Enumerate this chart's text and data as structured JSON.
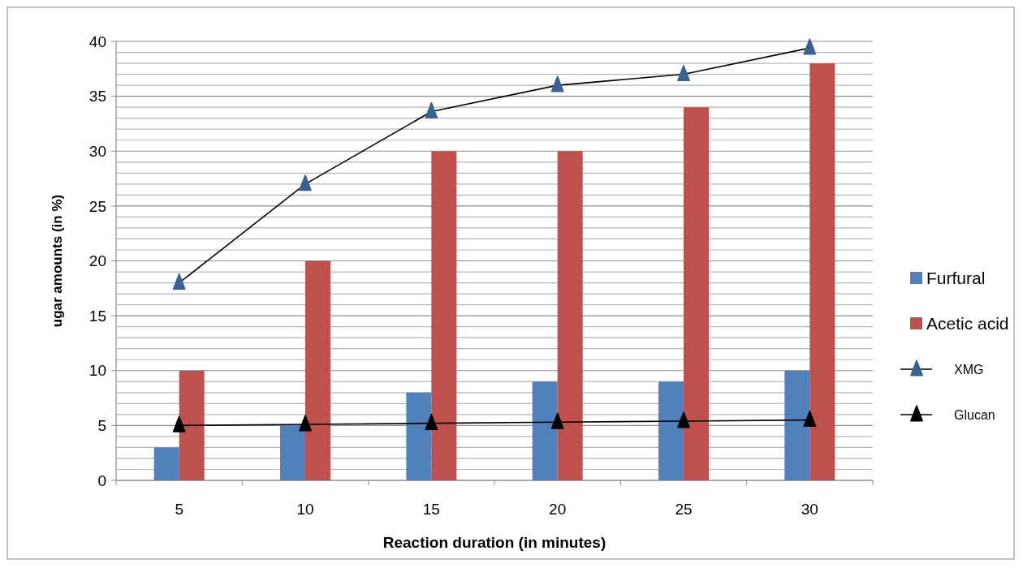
{
  "chart_data": {
    "type": "bar",
    "xlabel": "Reaction duration (in minutes)",
    "ylabel": "ugar amounts (in %)",
    "categories": [
      "5",
      "10",
      "15",
      "20",
      "25",
      "30"
    ],
    "series": [
      {
        "name": "Furfural",
        "color": "#4f81bd",
        "values": [
          3,
          5,
          8,
          9,
          9,
          10
        ]
      },
      {
        "name": "Acetic acid",
        "color": "#c0504d",
        "values": [
          10,
          20,
          30,
          30,
          34,
          38
        ]
      },
      {
        "name": "XMG",
        "type": "line",
        "color": "#3a6194",
        "values": [
          18,
          27,
          33.6,
          36,
          37,
          39.4
        ]
      },
      {
        "name": "Glucan",
        "type": "line",
        "color": "#000000",
        "values": [
          5,
          5.1,
          5.2,
          5.3,
          5.4,
          5.5
        ]
      }
    ],
    "ylim": [
      0,
      40
    ],
    "yticks": [
      0,
      {
        "value": 1,
        "label": null
      },
      {
        "value": 2,
        "label": null
      },
      {
        "value": 3,
        "label": null
      },
      {
        "value": 4,
        "label": null
      },
      5,
      {
        "value": 6,
        "label": null
      },
      {
        "value": 7,
        "label": null
      },
      {
        "value": 8,
        "label": null
      },
      {
        "value": 9,
        "label": null
      },
      10,
      {
        "value": 11,
        "label": null
      },
      {
        "value": 12,
        "label": null
      },
      {
        "value": 13,
        "label": null
      },
      {
        "value": 14,
        "label": null
      },
      15,
      {
        "value": 16,
        "label": null
      },
      {
        "value": 17,
        "label": null
      },
      {
        "value": 18,
        "label": null
      },
      {
        "value": 19,
        "label": null
      },
      20,
      {
        "value": 21,
        "label": null
      },
      {
        "value": 22,
        "label": null
      },
      {
        "value": 23,
        "label": null
      },
      {
        "value": 24,
        "label": null
      },
      25,
      {
        "value": 26,
        "label": null
      },
      {
        "value": 27,
        "label": null
      },
      {
        "value": 28,
        "label": null
      },
      {
        "value": 29,
        "label": null
      },
      30,
      {
        "value": 31,
        "label": null
      },
      {
        "value": 32,
        "label": null
      },
      {
        "value": 33,
        "label": null
      },
      {
        "value": 34,
        "label": null
      },
      35,
      {
        "value": 36,
        "label": null
      },
      {
        "value": 37,
        "label": null
      },
      {
        "value": 38,
        "label": null
      },
      {
        "value": 39,
        "label": null
      },
      40
    ],
    "grid": "y",
    "legend": "right",
    "marker": "triangle",
    "line_style": "solid"
  }
}
